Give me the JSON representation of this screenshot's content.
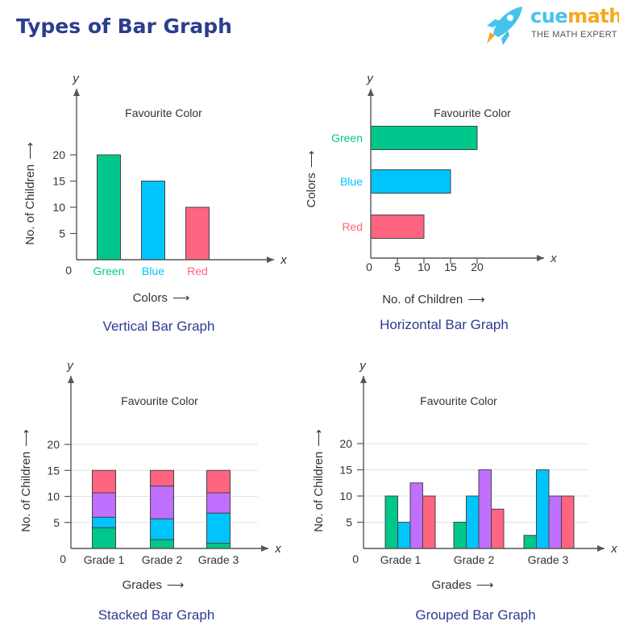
{
  "header": {
    "title": "Types of Bar Graph"
  },
  "logo": {
    "brand_part1": "cue",
    "brand_part2": "math",
    "tagline": "THE MATH EXPERT",
    "icon": "rocket-icon"
  },
  "colors": {
    "green": "#00c78b",
    "blue": "#00c5fd",
    "purple": "#c070ff",
    "red": "#ff6580",
    "caption": "#2b3d8f"
  },
  "chart_data": [
    {
      "type": "bar",
      "orientation": "vertical",
      "title": "Favourite Color",
      "caption": "Vertical Bar Graph",
      "xlabel": "Colors",
      "ylabel": "No. of Children",
      "x_axis_letter": "x",
      "y_axis_letter": "y",
      "origin_label": "0",
      "categories": [
        "Green",
        "Blue",
        "Red"
      ],
      "category_colors": [
        "#00c78b",
        "#00c5fd",
        "#ff6580"
      ],
      "values": [
        20,
        15,
        10
      ],
      "ticks": [
        "5",
        "10",
        "15",
        "20"
      ],
      "ylim": [
        0,
        20
      ],
      "grid": false
    },
    {
      "type": "bar",
      "orientation": "horizontal",
      "title": "Favourite Color",
      "caption": "Horizontal Bar Graph",
      "xlabel": "No. of Children",
      "ylabel": "Colors",
      "x_axis_letter": "x",
      "y_axis_letter": "y",
      "origin_label": "0",
      "categories": [
        "Green",
        "Blue",
        "Red"
      ],
      "category_colors": [
        "#00c78b",
        "#00c5fd",
        "#ff6580"
      ],
      "values": [
        20,
        15,
        10
      ],
      "ticks": [
        "5",
        "10",
        "15",
        "20"
      ],
      "xlim": [
        0,
        20
      ],
      "grid": false
    },
    {
      "type": "bar",
      "orientation": "stacked",
      "title": "Favourite Color",
      "caption": "Stacked Bar Graph",
      "xlabel": "Grades",
      "ylabel": "No. of Children",
      "x_axis_letter": "x",
      "y_axis_letter": "y",
      "origin_label": "0",
      "categories": [
        "Grade 1",
        "Grade 2",
        "Grade 3"
      ],
      "series": [
        {
          "color": "#00c78b",
          "values": [
            4,
            1.7,
            1
          ]
        },
        {
          "color": "#00c5fd",
          "values": [
            2,
            4,
            5.8
          ]
        },
        {
          "color": "#c070ff",
          "values": [
            4.7,
            6.3,
            3.9
          ]
        },
        {
          "color": "#ff6580",
          "values": [
            4.3,
            3,
            4.3
          ]
        }
      ],
      "ticks": [
        "5",
        "10",
        "15",
        "20"
      ],
      "ylim": [
        0,
        20
      ],
      "grid": true
    },
    {
      "type": "bar",
      "orientation": "grouped",
      "title": "Favourite Color",
      "caption": "Grouped Bar Graph",
      "xlabel": "Grades",
      "ylabel": "No. of Children",
      "x_axis_letter": "x",
      "y_axis_letter": "y",
      "origin_label": "0",
      "categories": [
        "Grade 1",
        "Grade 2",
        "Grade 3"
      ],
      "series": [
        {
          "color": "#00c78b",
          "values": [
            10,
            5,
            2.5
          ]
        },
        {
          "color": "#00c5fd",
          "values": [
            5,
            10,
            15
          ]
        },
        {
          "color": "#c070ff",
          "values": [
            12.5,
            15,
            10
          ]
        },
        {
          "color": "#ff6580",
          "values": [
            10,
            7.5,
            10
          ]
        }
      ],
      "ticks": [
        "5",
        "10",
        "15",
        "20"
      ],
      "ylim": [
        0,
        20
      ],
      "grid": true
    }
  ]
}
